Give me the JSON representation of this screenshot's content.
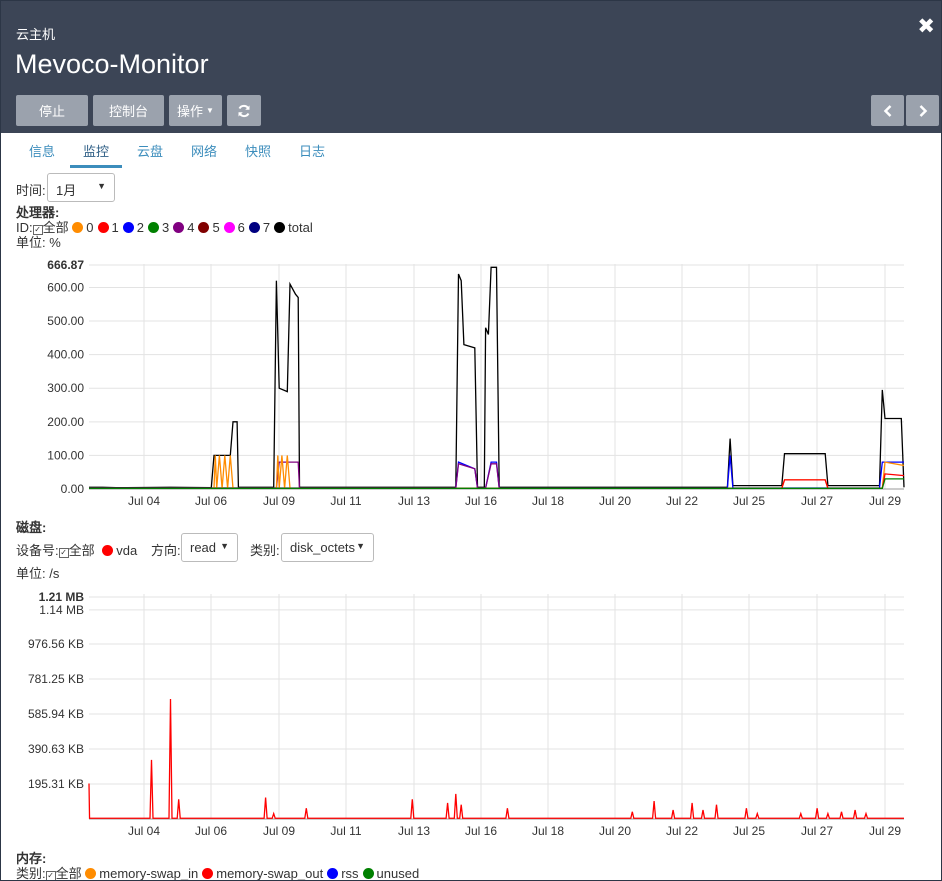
{
  "header": {
    "subtitle": "云主机",
    "title": "Mevoco-Monitor",
    "buttons": {
      "stop": "停止",
      "console": "控制台",
      "actions": "操作"
    }
  },
  "tabs": [
    "信息",
    "监控",
    "云盘",
    "网络",
    "快照",
    "日志"
  ],
  "active_tab": 1,
  "time": {
    "label": "时间:",
    "value": "1月"
  },
  "cpu": {
    "title": "处理器:",
    "id_label": "ID:",
    "all_label": "全部",
    "unit": "单位: %",
    "legend": [
      {
        "name": "0",
        "color": "#ff8c00"
      },
      {
        "name": "1",
        "color": "#ff0000"
      },
      {
        "name": "2",
        "color": "#0000ff"
      },
      {
        "name": "3",
        "color": "#008000"
      },
      {
        "name": "4",
        "color": "#800080"
      },
      {
        "name": "5",
        "color": "#800000"
      },
      {
        "name": "6",
        "color": "#ff00ff"
      },
      {
        "name": "7",
        "color": "#000080"
      },
      {
        "name": "total",
        "color": "#000000"
      }
    ]
  },
  "disk": {
    "title": "磁盘:",
    "device_label": "设备号:",
    "all_label": "全部",
    "device": "vda",
    "device_color": "#ff0000",
    "direction_label": "方向:",
    "direction": "read",
    "type_label": "类别:",
    "type": "disk_octets",
    "unit": "单位: /s"
  },
  "memory": {
    "title": "内存:",
    "type_label": "类别:",
    "all_label": "全部",
    "legend": [
      {
        "name": "memory-swap_in",
        "color": "#ff8c00"
      },
      {
        "name": "memory-swap_out",
        "color": "#ff0000"
      },
      {
        "name": "rss",
        "color": "#0000ff"
      },
      {
        "name": "unused",
        "color": "#008000"
      }
    ]
  },
  "chart_data": [
    {
      "type": "line",
      "x_ticks": [
        "Jul 04",
        "Jul 06",
        "Jul 09",
        "Jul 11",
        "Jul 13",
        "Jul 16",
        "Jul 18",
        "Jul 20",
        "Jul 22",
        "Jul 25",
        "Jul 27",
        "Jul 29"
      ],
      "y_ticks": [
        "666.87",
        "600.00",
        "500.00",
        "400.00",
        "300.00",
        "200.00",
        "100.00",
        "0.00"
      ],
      "ylim": [
        0,
        666.87
      ],
      "grid": true,
      "series": [
        {
          "name": "total",
          "color": "#000000",
          "points": [
            [
              0,
              5
            ],
            [
              0.5,
              5
            ],
            [
              1,
              4
            ],
            [
              3,
              5
            ],
            [
              4.5,
              4
            ],
            [
              4.6,
              100
            ],
            [
              5.2,
              100
            ],
            [
              5.3,
              200
            ],
            [
              5.45,
              200
            ],
            [
              5.5,
              5
            ],
            [
              6.8,
              5
            ],
            [
              6.9,
              620
            ],
            [
              7.0,
              300
            ],
            [
              7.3,
              290
            ],
            [
              7.4,
              610
            ],
            [
              7.6,
              580
            ],
            [
              7.7,
              570
            ],
            [
              7.75,
              5
            ],
            [
              13.5,
              5
            ],
            [
              13.6,
              640
            ],
            [
              13.7,
              620
            ],
            [
              13.8,
              430
            ],
            [
              14.2,
              420
            ],
            [
              14.3,
              5
            ],
            [
              14.55,
              5
            ],
            [
              14.6,
              480
            ],
            [
              14.7,
              460
            ],
            [
              14.8,
              660
            ],
            [
              15.0,
              660
            ],
            [
              15.1,
              5
            ],
            [
              23.5,
              5
            ],
            [
              23.6,
              150
            ],
            [
              23.7,
              10
            ],
            [
              25.5,
              10
            ],
            [
              25.6,
              105
            ],
            [
              27.1,
              105
            ],
            [
              27.2,
              10
            ],
            [
              29.1,
              10
            ],
            [
              29.2,
              295
            ],
            [
              29.3,
              210
            ],
            [
              29.9,
              210
            ],
            [
              30,
              5
            ]
          ]
        },
        {
          "name": "2",
          "color": "#0000ff",
          "points": [
            [
              0,
              3
            ],
            [
              13.5,
              3
            ],
            [
              13.6,
              80
            ],
            [
              14.2,
              60
            ],
            [
              14.3,
              3
            ],
            [
              14.6,
              3
            ],
            [
              14.8,
              80
            ],
            [
              15.0,
              80
            ],
            [
              15.1,
              3
            ],
            [
              23.5,
              3
            ],
            [
              23.6,
              100
            ],
            [
              23.7,
              3
            ],
            [
              29.1,
              3
            ],
            [
              29.2,
              80
            ],
            [
              30,
              80
            ]
          ]
        },
        {
          "name": "4",
          "color": "#800080",
          "points": [
            [
              0,
              3
            ],
            [
              6.9,
              3
            ],
            [
              7.0,
              80
            ],
            [
              7.7,
              80
            ],
            [
              7.75,
              3
            ],
            [
              13.5,
              3
            ],
            [
              13.6,
              75
            ],
            [
              14.2,
              60
            ],
            [
              14.3,
              3
            ],
            [
              14.6,
              3
            ],
            [
              14.8,
              75
            ],
            [
              15.0,
              75
            ],
            [
              15.1,
              3
            ]
          ]
        },
        {
          "name": "0",
          "color": "#ff8c00",
          "points": [
            [
              0,
              2
            ],
            [
              4.6,
              2
            ],
            [
              4.65,
              100
            ],
            [
              4.7,
              2
            ],
            [
              4.8,
              100
            ],
            [
              4.9,
              2
            ],
            [
              5.0,
              100
            ],
            [
              5.1,
              2
            ],
            [
              5.2,
              100
            ],
            [
              5.3,
              2
            ],
            [
              6.9,
              2
            ],
            [
              6.95,
              100
            ],
            [
              7.0,
              2
            ],
            [
              7.1,
              100
            ],
            [
              7.2,
              2
            ],
            [
              7.3,
              100
            ],
            [
              7.4,
              2
            ],
            [
              25.5,
              2
            ],
            [
              25.6,
              27
            ],
            [
              27.1,
              27
            ],
            [
              27.2,
              2
            ],
            [
              29.2,
              2
            ],
            [
              29.3,
              80
            ],
            [
              30,
              70
            ]
          ]
        },
        {
          "name": "1",
          "color": "#ff0000",
          "points": [
            [
              0,
              2
            ],
            [
              25.5,
              2
            ],
            [
              25.6,
              27
            ],
            [
              27.1,
              27
            ],
            [
              27.2,
              2
            ],
            [
              29.2,
              2
            ],
            [
              29.3,
              45
            ],
            [
              30,
              40
            ]
          ]
        },
        {
          "name": "3",
          "color": "#008000",
          "points": [
            [
              0,
              2
            ],
            [
              29.2,
              2
            ],
            [
              29.3,
              30
            ],
            [
              30,
              30
            ]
          ]
        }
      ]
    },
    {
      "type": "line",
      "x_ticks": [
        "Jul 04",
        "Jul 06",
        "Jul 09",
        "Jul 11",
        "Jul 13",
        "Jul 16",
        "Jul 18",
        "Jul 20",
        "Jul 22",
        "Jul 25",
        "Jul 27",
        "Jul 29"
      ],
      "y_ticks": [
        "1.21 MB",
        "1.14 MB",
        "976.56 KB",
        "781.25 KB",
        "585.94 KB",
        "390.63 KB",
        "195.31 KB"
      ],
      "grid": true,
      "series": [
        {
          "name": "vda",
          "color": "#ff0000",
          "spikes": [
            [
              2.3,
              330
            ],
            [
              3.0,
              670
            ],
            [
              3.3,
              110
            ],
            [
              6.5,
              120
            ],
            [
              6.8,
              30
            ],
            [
              8.0,
              60
            ],
            [
              11.9,
              110
            ],
            [
              13.2,
              90
            ],
            [
              13.5,
              140
            ],
            [
              13.7,
              80
            ],
            [
              15.4,
              60
            ],
            [
              20.0,
              40
            ],
            [
              20.8,
              100
            ],
            [
              21.5,
              50
            ],
            [
              22.2,
              90
            ],
            [
              22.6,
              50
            ],
            [
              23.1,
              80
            ],
            [
              24.2,
              60
            ],
            [
              24.6,
              30
            ],
            [
              26.2,
              30
            ],
            [
              26.8,
              60
            ],
            [
              27.2,
              30
            ],
            [
              27.7,
              40
            ],
            [
              28.2,
              50
            ],
            [
              28.6,
              30
            ]
          ]
        }
      ]
    }
  ]
}
